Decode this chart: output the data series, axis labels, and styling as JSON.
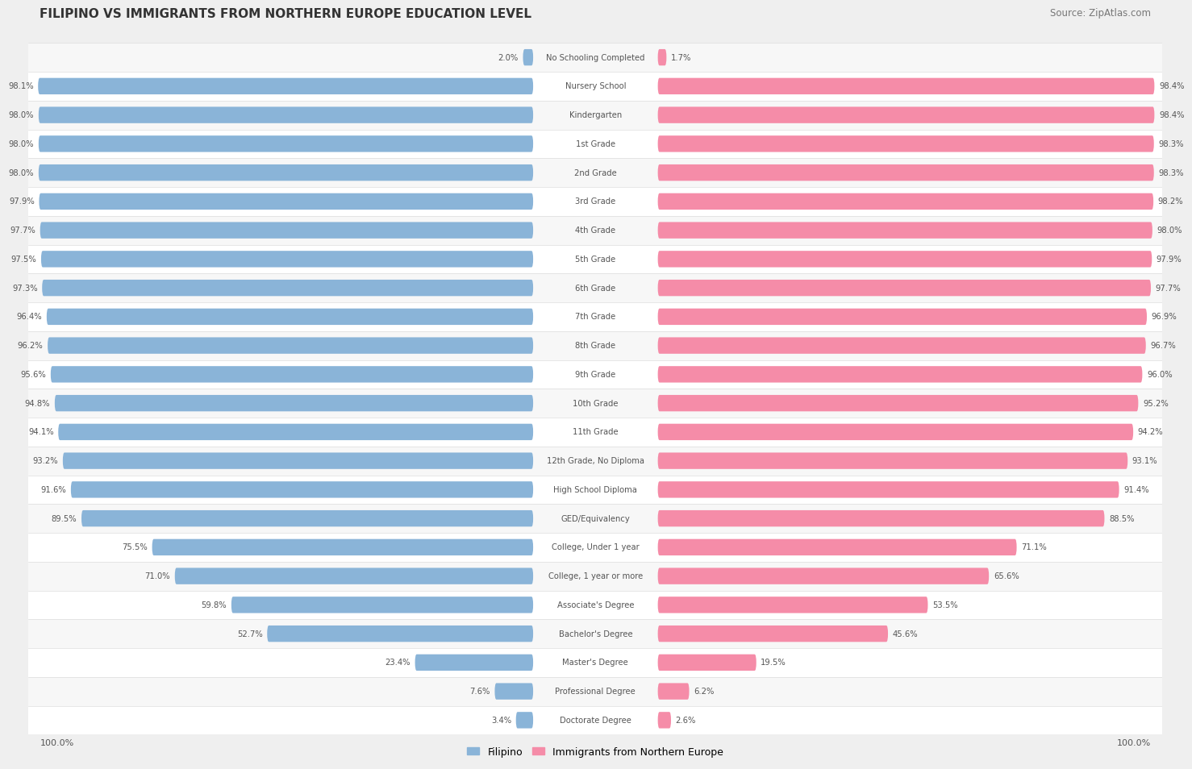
{
  "title": "FILIPINO VS IMMIGRANTS FROM NORTHERN EUROPE EDUCATION LEVEL",
  "source": "Source: ZipAtlas.com",
  "categories": [
    "No Schooling Completed",
    "Nursery School",
    "Kindergarten",
    "1st Grade",
    "2nd Grade",
    "3rd Grade",
    "4th Grade",
    "5th Grade",
    "6th Grade",
    "7th Grade",
    "8th Grade",
    "9th Grade",
    "10th Grade",
    "11th Grade",
    "12th Grade, No Diploma",
    "High School Diploma",
    "GED/Equivalency",
    "College, Under 1 year",
    "College, 1 year or more",
    "Associate's Degree",
    "Bachelor's Degree",
    "Master's Degree",
    "Professional Degree",
    "Doctorate Degree"
  ],
  "filipino": [
    2.0,
    98.1,
    98.0,
    98.0,
    98.0,
    97.9,
    97.7,
    97.5,
    97.3,
    96.4,
    96.2,
    95.6,
    94.8,
    94.1,
    93.2,
    91.6,
    89.5,
    75.5,
    71.0,
    59.8,
    52.7,
    23.4,
    7.6,
    3.4
  ],
  "northern_europe": [
    1.7,
    98.4,
    98.4,
    98.3,
    98.3,
    98.2,
    98.0,
    97.9,
    97.7,
    96.9,
    96.7,
    96.0,
    95.2,
    94.2,
    93.1,
    91.4,
    88.5,
    71.1,
    65.6,
    53.5,
    45.6,
    19.5,
    6.2,
    2.6
  ],
  "filipino_color": "#8ab4d8",
  "northern_europe_color": "#f58ca8",
  "row_even_color": "#f7f7f7",
  "row_odd_color": "#ffffff",
  "text_color": "#555555",
  "title_color": "#333333",
  "source_color": "#777777",
  "legend_filipino": "Filipino",
  "legend_ne": "Immigrants from Northern Europe",
  "background_color": "#efefef"
}
